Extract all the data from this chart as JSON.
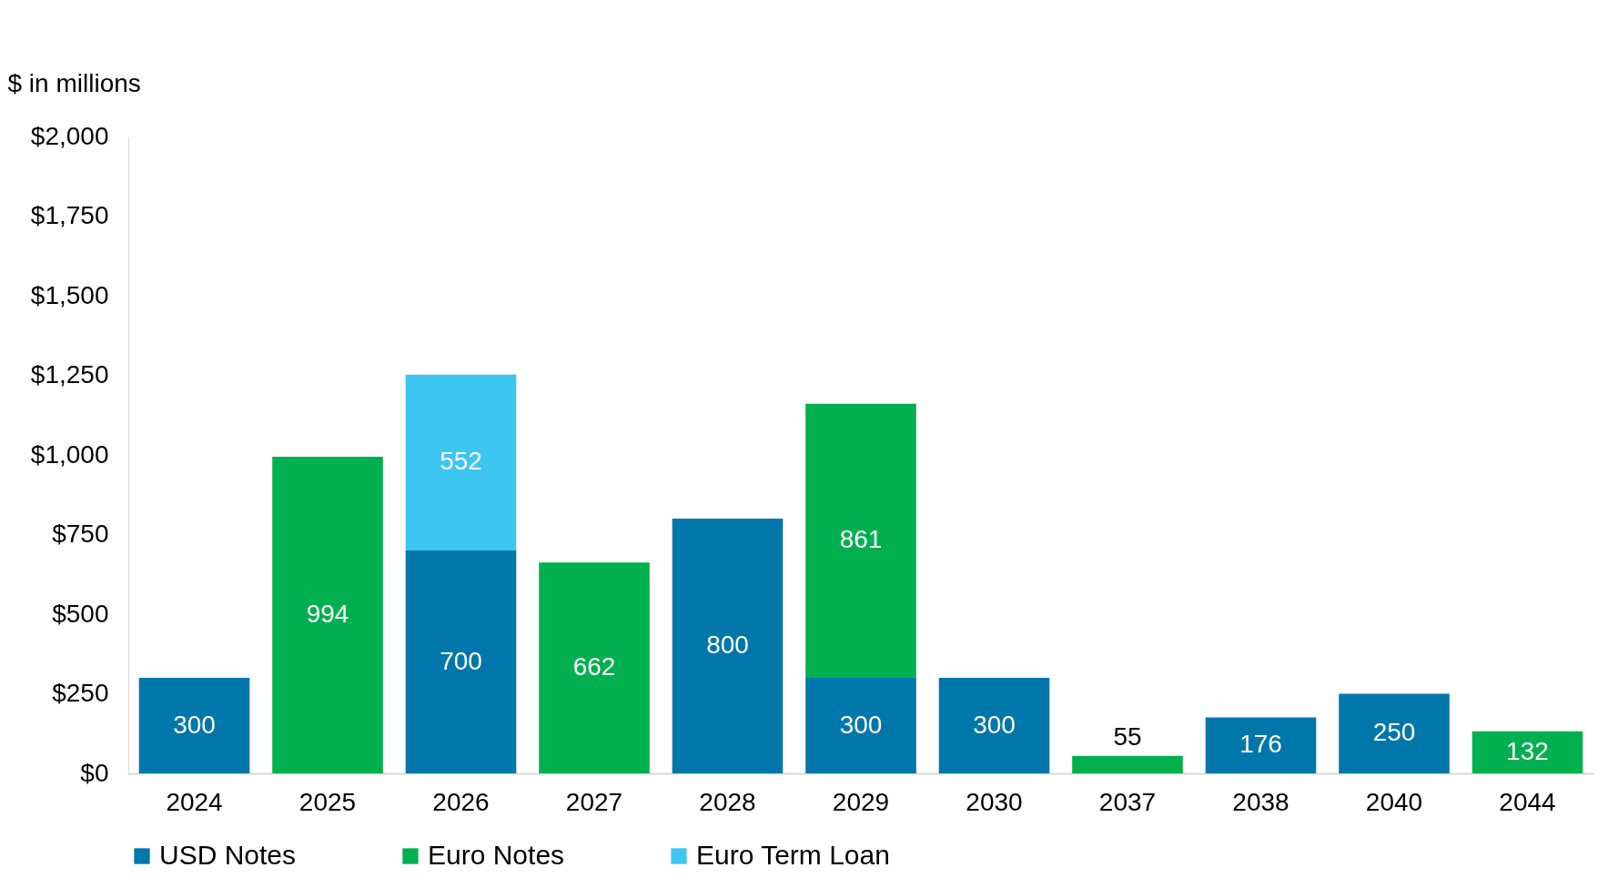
{
  "chart_data": {
    "type": "bar",
    "stacked": true,
    "ylabel": "$ in millions",
    "categories": [
      "2024",
      "2025",
      "2026",
      "2027",
      "2028",
      "2029",
      "2030",
      "2037",
      "2038",
      "2040",
      "2044"
    ],
    "series": [
      {
        "name": "USD Notes",
        "color": "#0077aa",
        "values": [
          300,
          null,
          700,
          null,
          800,
          300,
          300,
          null,
          176,
          250,
          null
        ]
      },
      {
        "name": "Euro Notes",
        "color": "#00b04f",
        "values": [
          null,
          994,
          null,
          662,
          null,
          861,
          null,
          55,
          null,
          null,
          132
        ]
      },
      {
        "name": "Euro Term Loan",
        "color": "#3ec6f2",
        "values": [
          null,
          null,
          552,
          null,
          null,
          null,
          null,
          null,
          null,
          null,
          null
        ]
      }
    ],
    "ylim": [
      0,
      2000
    ],
    "yticks": [
      {
        "value": 0,
        "label": "$0"
      },
      {
        "value": 250,
        "label": "$250"
      },
      {
        "value": 500,
        "label": "$500"
      },
      {
        "value": 750,
        "label": "$750"
      },
      {
        "value": 1000,
        "label": "$1,000"
      },
      {
        "value": 1250,
        "label": "$1,250"
      },
      {
        "value": 1500,
        "label": "$1,500"
      },
      {
        "value": 1750,
        "label": "$1,750"
      },
      {
        "value": 2000,
        "label": "$2,000"
      }
    ],
    "data_labels": true,
    "legend": "bottom",
    "grid": false
  }
}
